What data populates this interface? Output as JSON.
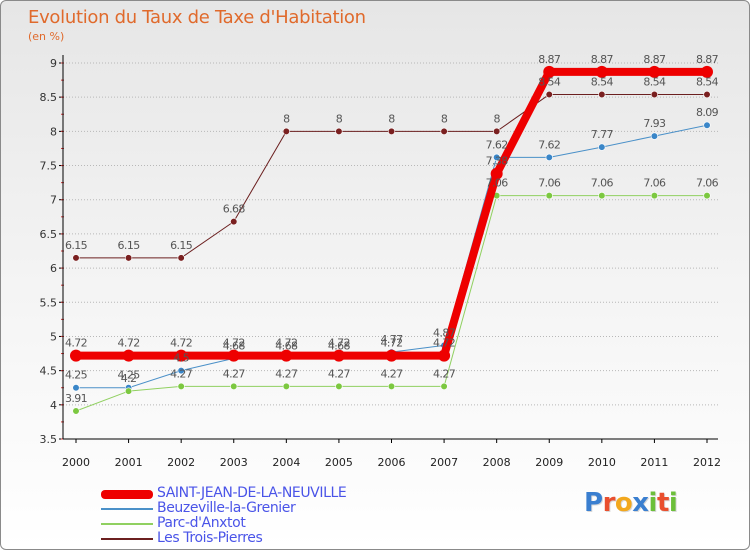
{
  "header": {
    "title": "Evolution du Taux de Taxe d'Habitation",
    "unit": "(en %)"
  },
  "colors": {
    "axis": "#000000",
    "grid": "#b8b8b8",
    "tickRed": "#cc3333",
    "label": "#555555"
  },
  "chart_data": {
    "type": "line",
    "title": "Evolution du Taux de Taxe d'Habitation",
    "ylabel": "(en %)",
    "xlabel": "",
    "x": [
      "2000",
      "2001",
      "2002",
      "2003",
      "2004",
      "2005",
      "2006",
      "2007",
      "2008",
      "2009",
      "2010",
      "2011",
      "2012"
    ],
    "ylim": [
      3.5,
      9
    ],
    "yticks": [
      "3.5",
      "4",
      "4.5",
      "5",
      "5.5",
      "6",
      "6.5",
      "7",
      "7.5",
      "8",
      "8.5",
      "9"
    ],
    "series": [
      {
        "name": "Les Trois-Pierres",
        "color": "#6b1f1f",
        "marker": "#7a2020",
        "width": 1,
        "values": [
          6.15,
          6.15,
          6.15,
          6.68,
          8,
          8,
          8,
          8,
          8,
          8.54,
          8.54,
          8.54,
          8.54
        ],
        "labels": [
          "6.15",
          "6.15",
          "6.15",
          "6.68",
          "8",
          "8",
          "8",
          "8",
          "8",
          "8.54",
          "8.54",
          "8.54",
          "8.54"
        ]
      },
      {
        "name": "Beuzeville-la-Grenier",
        "color": "#4a90c8",
        "marker": "#3a86c8",
        "width": 1,
        "values": [
          4.25,
          4.25,
          4.5,
          4.68,
          4.68,
          4.68,
          4.77,
          4.87,
          7.62,
          7.62,
          7.77,
          7.93,
          8.09
        ],
        "labels": [
          "4.25",
          "4.25",
          "4.5",
          "4.68",
          "4.68",
          "4.68",
          "4.77",
          "4.87",
          "7.62",
          "7.62",
          "7.77",
          "7.93",
          "8.09"
        ]
      },
      {
        "name": "Parc-d'Anxtot",
        "color": "#90d060",
        "marker": "#7cc840",
        "width": 1,
        "values": [
          3.91,
          4.2,
          4.27,
          4.27,
          4.27,
          4.27,
          4.27,
          4.27,
          7.06,
          7.06,
          7.06,
          7.06,
          7.06
        ],
        "labels": [
          "3.91",
          "4.2",
          "4.27",
          "4.27",
          "4.27",
          "4.27",
          "4.27",
          "4.27",
          "7.06",
          "7.06",
          "7.06",
          "7.06",
          "7.06"
        ]
      },
      {
        "name": "SAINT-JEAN-DE-LA-NEUVILLE",
        "color": "#ee0000",
        "marker": "#ee0000",
        "width": 8,
        "values": [
          4.72,
          4.72,
          4.72,
          4.72,
          4.72,
          4.72,
          4.72,
          4.72,
          7.38,
          8.87,
          8.87,
          8.87,
          8.87
        ],
        "labels": [
          "4.72",
          "4.72",
          "4.72",
          "4.72",
          "4.72",
          "4.72",
          "4.72",
          "4.72",
          "7.38",
          "8.87",
          "8.87",
          "8.87",
          "8.87"
        ]
      }
    ]
  },
  "legend": [
    {
      "label": "SAINT-JEAN-DE-LA-NEUVILLE",
      "color": "#ee0000",
      "thick": 9
    },
    {
      "label": "Beuzeville-la-Grenier",
      "color": "#4a90c8",
      "thick": 2
    },
    {
      "label": "Parc-d'Anxtot",
      "color": "#90d060",
      "thick": 2
    },
    {
      "label": "Les Trois-Pierres",
      "color": "#6b1f1f",
      "thick": 2
    }
  ],
  "logo": {
    "letters": [
      {
        "ch": "P",
        "color": "#3a7fd0"
      },
      {
        "ch": "r",
        "color": "#e94f2e"
      },
      {
        "ch": "o",
        "color": "#f2a81e"
      },
      {
        "ch": "x",
        "color": "#3a7fd0"
      },
      {
        "ch": "i",
        "color": "#6cbf3a"
      },
      {
        "ch": "t",
        "color": "#e94f2e"
      },
      {
        "ch": "i",
        "color": "#6cbf3a"
      }
    ]
  }
}
